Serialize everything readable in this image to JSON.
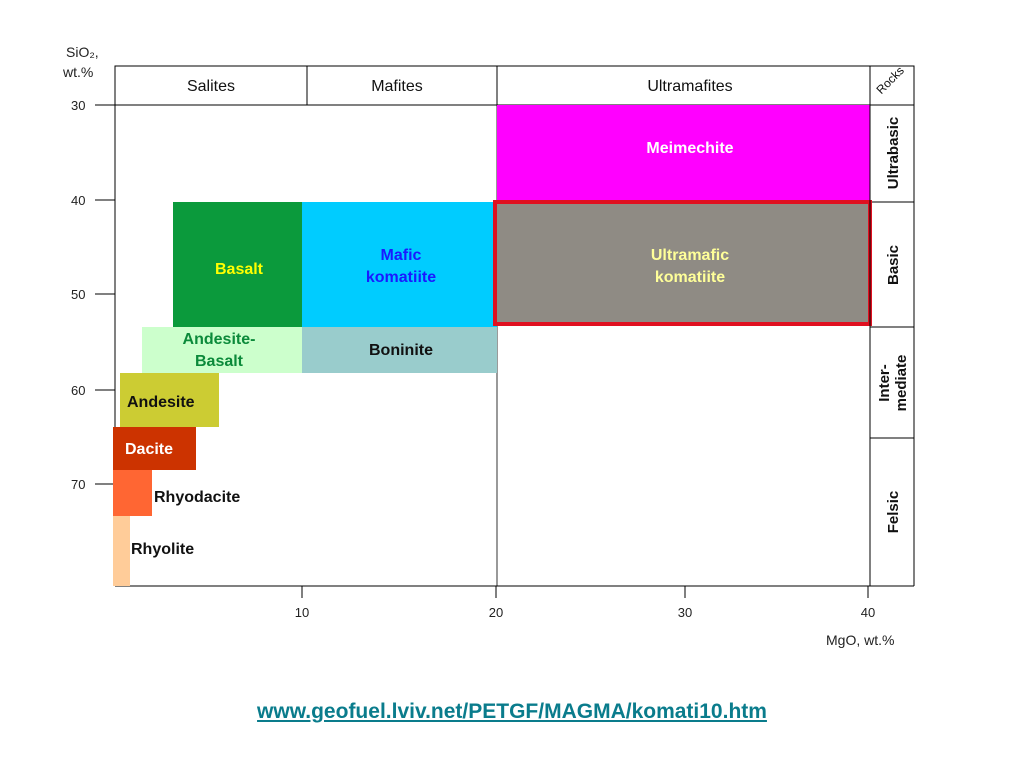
{
  "axes": {
    "y_label_line1": "SiO₂,",
    "y_label_line2": "wt.%",
    "x_label": "MgO, wt.%",
    "y_ticks": [
      "30",
      "40",
      "50",
      "60",
      "70"
    ],
    "x_ticks": [
      "10",
      "20",
      "30",
      "40"
    ]
  },
  "header": {
    "col1": "Salites",
    "col2": "Mafites",
    "col3": "Ultramafites",
    "corner": "Rocks"
  },
  "side_labels": {
    "ultrabasic": "Ultrabasic",
    "basic": "Basic",
    "intermediate_line1": "Inter-",
    "intermediate_line2": "mediate",
    "felsic": "Felsic"
  },
  "fields": {
    "meimechite": "Meimechite",
    "basalt": "Basalt",
    "mafic_komatiite_line1": "Mafic",
    "mafic_komatiite_line2": "komatiite",
    "ultramafic_komatiite_line1": "Ultramafic",
    "ultramafic_komatiite_line2": "komatiite",
    "andesite_basalt_line1": "Andesite-",
    "andesite_basalt_line2": "Basalt",
    "boninite": "Boninite",
    "andesite": "Andesite",
    "dacite": "Dacite",
    "rhyodacite": "Rhyodacite",
    "rhyolite": "Rhyolite"
  },
  "colors": {
    "meimechite": "#ff00ff",
    "basalt": "#0b9a3c",
    "mafic_komatiite": "#00ccff",
    "ultramafic_komatiite": "#8f8b84",
    "highlight_border": "#e01020",
    "andesite_basalt": "#ccffcc",
    "boninite": "#99cccc",
    "andesite": "#cccc33",
    "dacite": "#cc3300",
    "rhyodacite": "#ff6633",
    "rhyolite": "#ffcc99",
    "link": "#0a7c8c"
  },
  "link_text": "www.geofuel.lviv.net/PETGF/MAGMA/komati10.htm"
}
